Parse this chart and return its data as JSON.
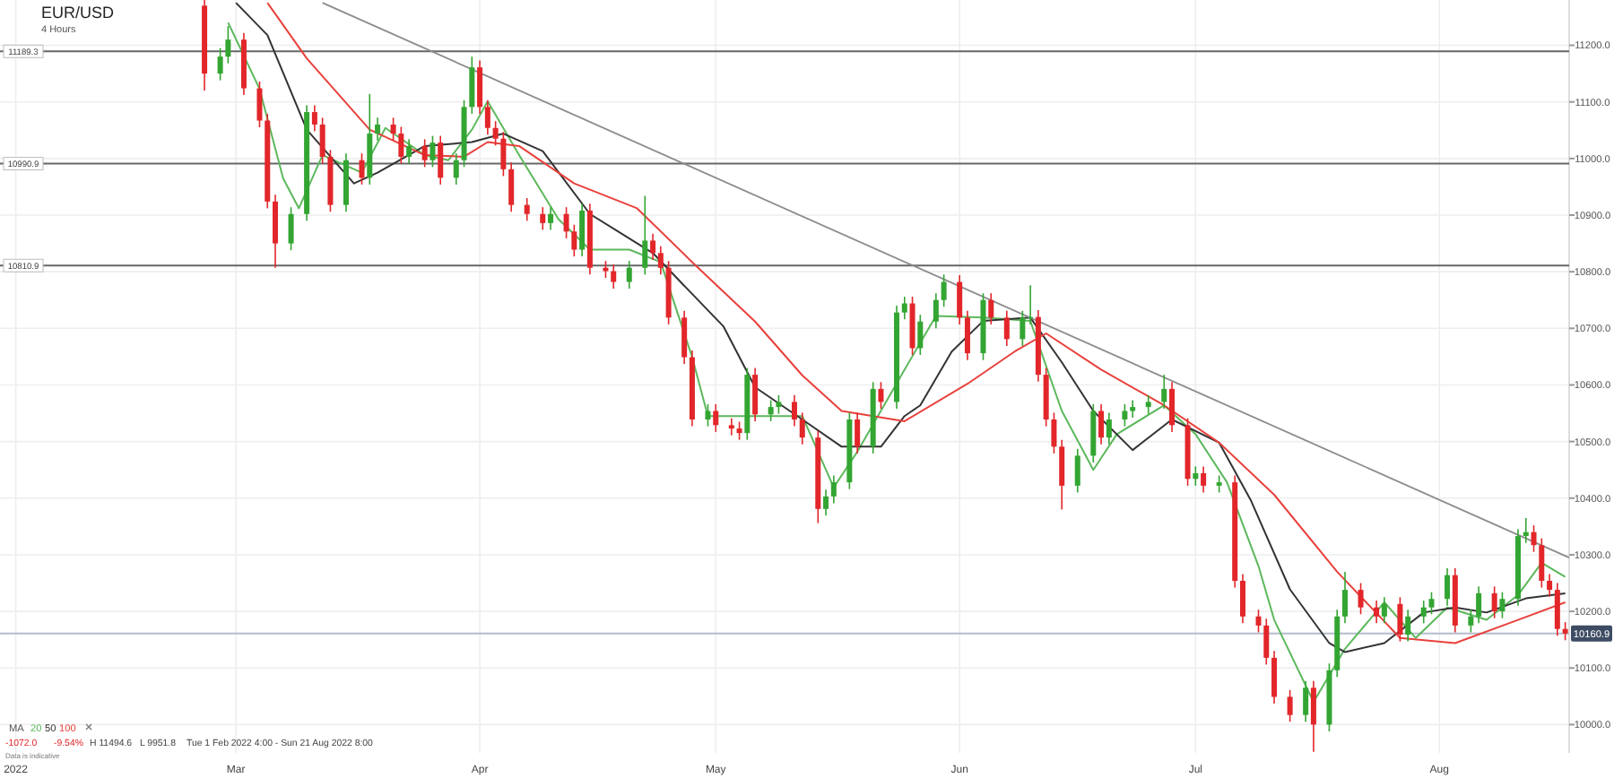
{
  "chart_data": {
    "type": "candlestick",
    "title": "EUR/USD",
    "subtitle": "4 Hours",
    "x": [
      "2022-02-25",
      "2022-02-27",
      "2022-02-28",
      "2022-03-02",
      "2022-03-04",
      "2022-03-05",
      "2022-03-06",
      "2022-03-08",
      "2022-03-10",
      "2022-03-11",
      "2022-03-12",
      "2022-03-13",
      "2022-03-15",
      "2022-03-17",
      "2022-03-18",
      "2022-03-19",
      "2022-03-21",
      "2022-03-22",
      "2022-03-23",
      "2022-03-25",
      "2022-03-26",
      "2022-03-27",
      "2022-03-29",
      "2022-03-30",
      "2022-03-31",
      "2022-04-01",
      "2022-04-02",
      "2022-04-03",
      "2022-04-04",
      "2022-04-05",
      "2022-04-07",
      "2022-04-09",
      "2022-04-10",
      "2022-04-12",
      "2022-04-13",
      "2022-04-14",
      "2022-04-15",
      "2022-04-17",
      "2022-04-18",
      "2022-04-20",
      "2022-04-22",
      "2022-04-23",
      "2022-04-24",
      "2022-04-25",
      "2022-04-27",
      "2022-04-28",
      "2022-04-30",
      "2022-05-01",
      "2022-05-03",
      "2022-05-04",
      "2022-05-05",
      "2022-05-06",
      "2022-05-08",
      "2022-05-09",
      "2022-05-11",
      "2022-05-12",
      "2022-05-14",
      "2022-05-15",
      "2022-05-16",
      "2022-05-18",
      "2022-05-19",
      "2022-05-21",
      "2022-05-22",
      "2022-05-24",
      "2022-05-25",
      "2022-05-26",
      "2022-05-27",
      "2022-05-29",
      "2022-05-30",
      "2022-06-01",
      "2022-06-02",
      "2022-06-04",
      "2022-06-05",
      "2022-06-07",
      "2022-06-09",
      "2022-06-10",
      "2022-06-11",
      "2022-06-12",
      "2022-06-13",
      "2022-06-14",
      "2022-06-16",
      "2022-06-18",
      "2022-06-19",
      "2022-06-20",
      "2022-06-22",
      "2022-06-23",
      "2022-06-25",
      "2022-06-27",
      "2022-06-28",
      "2022-06-30",
      "2022-07-01",
      "2022-07-02",
      "2022-07-04",
      "2022-07-06",
      "2022-07-07",
      "2022-07-09",
      "2022-07-10",
      "2022-07-11",
      "2022-07-13",
      "2022-07-15",
      "2022-07-16",
      "2022-07-18",
      "2022-07-19",
      "2022-07-20",
      "2022-07-22",
      "2022-07-24",
      "2022-07-25",
      "2022-07-27",
      "2022-07-28",
      "2022-07-30",
      "2022-07-31",
      "2022-08-02",
      "2022-08-03",
      "2022-08-05",
      "2022-08-06",
      "2022-08-08",
      "2022-08-09",
      "2022-08-11",
      "2022-08-12",
      "2022-08-13",
      "2022-08-14",
      "2022-08-15",
      "2022-08-16",
      "2022-08-17"
    ],
    "ohlc": [
      [
        11270,
        11280,
        11120,
        11150
      ],
      [
        11150,
        11195,
        11138,
        11180
      ],
      [
        11180,
        11234,
        11168,
        11210
      ],
      [
        11210,
        11222,
        11112,
        11124
      ],
      [
        11124,
        11136,
        11055,
        11067
      ],
      [
        11067,
        11079,
        10912,
        10924
      ],
      [
        10924,
        10936,
        10807,
        10850
      ],
      [
        10850,
        10914,
        10838,
        10902
      ],
      [
        10902,
        11094,
        10890,
        11082
      ],
      [
        11082,
        11094,
        11048,
        11060
      ],
      [
        11060,
        11072,
        10991,
        11003
      ],
      [
        11003,
        11015,
        10906,
        10918
      ],
      [
        10918,
        11009,
        10906,
        10997
      ],
      [
        10997,
        11009,
        10954,
        10966
      ],
      [
        10966,
        11114,
        10954,
        11044
      ],
      [
        11044,
        11072,
        11032,
        11060
      ],
      [
        11060,
        11072,
        11032,
        11044
      ],
      [
        11044,
        11056,
        10991,
        11003
      ],
      [
        11003,
        11034,
        10991,
        11022
      ],
      [
        11022,
        11034,
        10985,
        10997
      ],
      [
        10997,
        11040,
        10985,
        11028
      ],
      [
        11028,
        11040,
        10954,
        10966
      ],
      [
        10966,
        11009,
        10954,
        10997
      ],
      [
        10997,
        11103,
        10985,
        11091
      ],
      [
        11091,
        11180,
        11079,
        11161
      ],
      [
        11161,
        11173,
        11079,
        11091
      ],
      [
        11091,
        11103,
        11042,
        11054
      ],
      [
        11054,
        11066,
        11023,
        11035
      ],
      [
        11035,
        11047,
        10969,
        10981
      ],
      [
        10981,
        10993,
        10906,
        10918
      ],
      [
        10918,
        10930,
        10890,
        10902
      ],
      [
        10902,
        10914,
        10874,
        10886
      ],
      [
        10886,
        10914,
        10874,
        10902
      ],
      [
        10902,
        10914,
        10859,
        10871
      ],
      [
        10871,
        10883,
        10827,
        10839
      ],
      [
        10839,
        10920,
        10827,
        10908
      ],
      [
        10908,
        10920,
        10795,
        10807
      ],
      [
        10807,
        10819,
        10789,
        10801
      ],
      [
        10801,
        10813,
        10770,
        10782
      ],
      [
        10782,
        10819,
        10770,
        10807
      ],
      [
        10807,
        10934,
        10795,
        10855
      ],
      [
        10855,
        10867,
        10821,
        10833
      ],
      [
        10833,
        10845,
        10795,
        10807
      ],
      [
        10807,
        10819,
        10707,
        10719
      ],
      [
        10719,
        10731,
        10637,
        10649
      ],
      [
        10649,
        10661,
        10527,
        10539
      ],
      [
        10539,
        10566,
        10527,
        10554
      ],
      [
        10554,
        10566,
        10517,
        10529
      ],
      [
        10529,
        10541,
        10511,
        10523
      ],
      [
        10523,
        10535,
        10503,
        10515
      ],
      [
        10515,
        10630,
        10503,
        10618
      ],
      [
        10618,
        10630,
        10536,
        10548
      ],
      [
        10548,
        10573,
        10536,
        10561
      ],
      [
        10561,
        10582,
        10549,
        10570
      ],
      [
        10570,
        10582,
        10527,
        10539
      ],
      [
        10539,
        10551,
        10495,
        10507
      ],
      [
        10507,
        10519,
        10356,
        10381
      ],
      [
        10381,
        10415,
        10369,
        10403
      ],
      [
        10403,
        10440,
        10391,
        10428
      ],
      [
        10428,
        10551,
        10416,
        10539
      ],
      [
        10539,
        10551,
        10479,
        10491
      ],
      [
        10491,
        10605,
        10479,
        10593
      ],
      [
        10593,
        10605,
        10558,
        10570
      ],
      [
        10570,
        10740,
        10558,
        10728
      ],
      [
        10728,
        10756,
        10716,
        10744
      ],
      [
        10744,
        10756,
        10653,
        10665
      ],
      [
        10665,
        10724,
        10653,
        10712
      ],
      [
        10712,
        10762,
        10700,
        10750
      ],
      [
        10750,
        10795,
        10738,
        10782
      ],
      [
        10782,
        10794,
        10707,
        10719
      ],
      [
        10719,
        10731,
        10644,
        10656
      ],
      [
        10656,
        10762,
        10644,
        10750
      ],
      [
        10750,
        10762,
        10707,
        10719
      ],
      [
        10719,
        10731,
        10669,
        10681
      ],
      [
        10681,
        10731,
        10669,
        10719
      ],
      [
        10719,
        10776,
        10707,
        10720
      ],
      [
        10720,
        10732,
        10606,
        10618
      ],
      [
        10618,
        10630,
        10527,
        10539
      ],
      [
        10539,
        10551,
        10479,
        10491
      ],
      [
        10491,
        10503,
        10380,
        10422
      ],
      [
        10422,
        10487,
        10410,
        10475
      ],
      [
        10475,
        10566,
        10463,
        10554
      ],
      [
        10554,
        10566,
        10495,
        10507
      ],
      [
        10507,
        10551,
        10495,
        10539
      ],
      [
        10539,
        10566,
        10527,
        10554
      ],
      [
        10554,
        10573,
        10542,
        10561
      ],
      [
        10561,
        10582,
        10549,
        10570
      ],
      [
        10570,
        10618,
        10558,
        10593
      ],
      [
        10593,
        10605,
        10517,
        10529
      ],
      [
        10529,
        10541,
        10422,
        10434
      ],
      [
        10434,
        10456,
        10422,
        10444
      ],
      [
        10444,
        10456,
        10410,
        10422
      ],
      [
        10422,
        10440,
        10410,
        10428
      ],
      [
        10428,
        10440,
        10242,
        10254
      ],
      [
        10254,
        10266,
        10179,
        10191
      ],
      [
        10191,
        10203,
        10163,
        10175
      ],
      [
        10175,
        10187,
        10106,
        10118
      ],
      [
        10118,
        10130,
        10037,
        10049
      ],
      [
        10049,
        10061,
        10005,
        10017
      ],
      [
        10017,
        10077,
        10005,
        10065
      ],
      [
        10065,
        10077,
        9951.8,
        10000
      ],
      [
        10000,
        10108,
        9988,
        10096
      ],
      [
        10096,
        10203,
        10084,
        10191
      ],
      [
        10191,
        10270,
        10179,
        10238
      ],
      [
        10238,
        10250,
        10195,
        10207
      ],
      [
        10207,
        10219,
        10179,
        10191
      ],
      [
        10191,
        10225,
        10179,
        10213
      ],
      [
        10213,
        10225,
        10147,
        10159
      ],
      [
        10159,
        10203,
        10147,
        10191
      ],
      [
        10191,
        10219,
        10179,
        10207
      ],
      [
        10207,
        10234,
        10195,
        10222
      ],
      [
        10222,
        10276,
        10210,
        10264
      ],
      [
        10264,
        10276,
        10163,
        10175
      ],
      [
        10175,
        10203,
        10163,
        10191
      ],
      [
        10191,
        10244,
        10179,
        10232
      ],
      [
        10232,
        10244,
        10188,
        10200
      ],
      [
        10200,
        10234,
        10188,
        10222
      ],
      [
        10222,
        10345,
        10210,
        10333
      ],
      [
        10333,
        10365,
        10321,
        10340
      ],
      [
        10340,
        10352,
        10305,
        10317
      ],
      [
        10317,
        10329,
        10242,
        10254
      ],
      [
        10254,
        10266,
        10226,
        10238
      ],
      [
        10238,
        10250,
        10157,
        10169
      ],
      [
        10169,
        10181,
        10149,
        10160.9
      ]
    ],
    "series": [
      {
        "type": "line",
        "name": "20",
        "color": "#5cb85c",
        "x": [
          "2022-02-28",
          "2022-03-04",
          "2022-03-07",
          "2022-03-09",
          "2022-03-12",
          "2022-03-17",
          "2022-03-20",
          "2022-03-25",
          "2022-03-28",
          "2022-03-31",
          "2022-04-02",
          "2022-04-06",
          "2022-04-11",
          "2022-04-15",
          "2022-04-20",
          "2022-04-24",
          "2022-04-28",
          "2022-04-30",
          "2022-05-06",
          "2022-05-12",
          "2022-05-16",
          "2022-05-19",
          "2022-05-25",
          "2022-05-29",
          "2022-06-04",
          "2022-06-10",
          "2022-06-14",
          "2022-06-18",
          "2022-06-21",
          "2022-06-27",
          "2022-07-01",
          "2022-07-05",
          "2022-07-09",
          "2022-07-11",
          "2022-07-16",
          "2022-07-20",
          "2022-07-25",
          "2022-07-29",
          "2022-08-02",
          "2022-08-07",
          "2022-08-11",
          "2022-08-14",
          "2022-08-17"
        ],
        "values": [
          11240,
          11123,
          10965,
          10912,
          11006,
          10975,
          11054,
          11006,
          10997,
          11051,
          11101,
          11006,
          10893,
          10839,
          10839,
          10817,
          10649,
          10545,
          10545,
          10545,
          10419,
          10482,
          10627,
          10722,
          10719,
          10713,
          10554,
          10450,
          10513,
          10564,
          10513,
          10428,
          10280,
          10185,
          10040,
          10134,
          10216,
          10153,
          10207,
          10185,
          10229,
          10286,
          10261
        ]
      },
      {
        "type": "line",
        "name": "50",
        "color": "#333333",
        "x": [
          "2022-03-01",
          "2022-03-05",
          "2022-03-10",
          "2022-03-16",
          "2022-03-19",
          "2022-03-25",
          "2022-03-31",
          "2022-04-04",
          "2022-04-09",
          "2022-04-15",
          "2022-04-23",
          "2022-05-02",
          "2022-05-06",
          "2022-05-12",
          "2022-05-17",
          "2022-05-22",
          "2022-05-25",
          "2022-05-27",
          "2022-05-31",
          "2022-06-04",
          "2022-06-10",
          "2022-06-14",
          "2022-06-18",
          "2022-06-23",
          "2022-06-28",
          "2022-07-04",
          "2022-07-08",
          "2022-07-13",
          "2022-07-18",
          "2022-07-20",
          "2022-07-25",
          "2022-07-30",
          "2022-08-03",
          "2022-08-07",
          "2022-08-12",
          "2022-08-17"
        ],
        "values": [
          11275,
          11218,
          11051,
          10956,
          10975,
          11022,
          11029,
          11044,
          11013,
          10902,
          10833,
          10703,
          10596,
          10539,
          10491,
          10491,
          10545,
          10564,
          10659,
          10713,
          10719,
          10640,
          10554,
          10485,
          10539,
          10498,
          10397,
          10239,
          10144,
          10128,
          10144,
          10198,
          10207,
          10198,
          10223,
          10232
        ]
      },
      {
        "type": "line",
        "name": "100",
        "color": "#e8413c",
        "x": [
          "2022-03-05",
          "2022-03-10",
          "2022-03-18",
          "2022-03-25",
          "2022-03-30",
          "2022-04-02",
          "2022-04-06",
          "2022-04-13",
          "2022-04-21",
          "2022-04-28",
          "2022-05-06",
          "2022-05-12",
          "2022-05-17",
          "2022-05-25",
          "2022-06-02",
          "2022-06-08",
          "2022-06-12",
          "2022-06-19",
          "2022-06-27",
          "2022-07-04",
          "2022-07-11",
          "2022-07-19",
          "2022-07-27",
          "2022-08-03",
          "2022-08-11",
          "2022-08-17"
        ],
        "values": [
          11275,
          11177,
          11051,
          11006,
          11003,
          11029,
          11022,
          10956,
          10912,
          10817,
          10712,
          10617,
          10554,
          10536,
          10602,
          10659,
          10691,
          10627,
          10564,
          10498,
          10406,
          10270,
          10153,
          10144,
          10185,
          10216
        ]
      },
      {
        "type": "line",
        "color": "#8c8c8c",
        "x": [
          "2022-03-12",
          "2022-08-17T12:00"
        ],
        "values": [
          11275,
          10295
        ]
      }
    ],
    "xlim": [
      "2022-01-30",
      "2022-08-17T12:00"
    ],
    "xticks": [
      {
        "value": "2022-02-01",
        "label": "2022"
      },
      {
        "value": "2022-03-01",
        "label": "Mar"
      },
      {
        "value": "2022-04-01",
        "label": "Apr"
      },
      {
        "value": "2022-05-01",
        "label": "May"
      },
      {
        "value": "2022-06-01",
        "label": "Jun"
      },
      {
        "value": "2022-07-01",
        "label": "Jul"
      },
      {
        "value": "2022-08-01",
        "label": "Aug"
      }
    ],
    "ylim": [
      9950,
      11280
    ],
    "yticks": [
      {
        "value": 10000,
        "label": "10000.0"
      },
      {
        "value": 10100,
        "label": "10100.0"
      },
      {
        "value": 10200,
        "label": "10200.0"
      },
      {
        "value": 10300,
        "label": "10300.0"
      },
      {
        "value": 10400,
        "label": "10400.0"
      },
      {
        "value": 10500,
        "label": "10500.0"
      },
      {
        "value": 10600,
        "label": "10600.0"
      },
      {
        "value": 10700,
        "label": "10700.0"
      },
      {
        "value": 10800,
        "label": "10800.0"
      },
      {
        "value": 10900,
        "label": "10900.0"
      },
      {
        "value": 11000,
        "label": "11000.0"
      },
      {
        "value": 11100,
        "label": "11100.0"
      },
      {
        "value": 11200,
        "label": "11200.0"
      }
    ],
    "ref_lines": [
      {
        "axis": "y",
        "value": 11189.3,
        "label": "11189.3",
        "color": "#666666"
      },
      {
        "axis": "y",
        "value": 10990.9,
        "label": "10990.9",
        "color": "#666666"
      },
      {
        "axis": "y",
        "value": 10810.9,
        "label": "10810.9",
        "color": "#666666"
      },
      {
        "axis": "y",
        "value": 10160.9,
        "label": "10160.9",
        "color": "#b4bccb"
      }
    ],
    "legend": "bottom left",
    "legend_title": "MA",
    "grid": true,
    "annotations": [
      "-1072.0",
      "-9.54%",
      "H 11494.6",
      "L 9951.8",
      "Tue 1 Feb 2022 4:00 - Sun 21 Aug 2022 8:00",
      "Data is indicative"
    ]
  }
}
